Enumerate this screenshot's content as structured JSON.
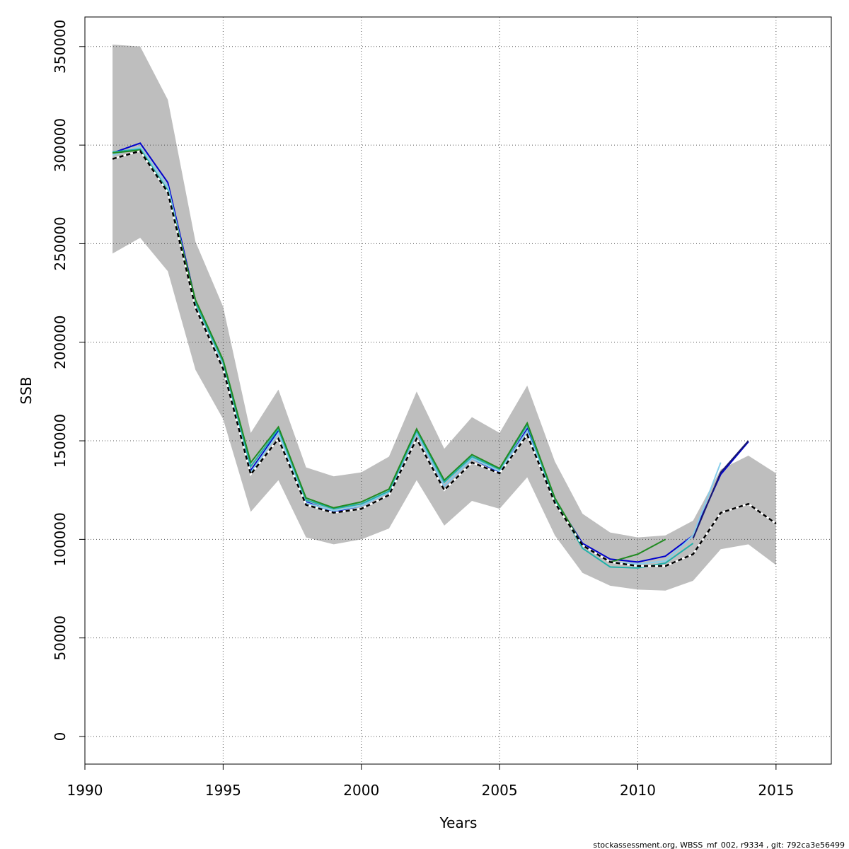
{
  "chart_data": {
    "type": "line",
    "xlabel": "Years",
    "ylabel": "SSB",
    "xlim": [
      1990,
      2017
    ],
    "ylim": [
      -14000,
      365000
    ],
    "x_ticks": [
      1990,
      1995,
      2000,
      2005,
      2010,
      2015
    ],
    "y_ticks": [
      0,
      50000,
      100000,
      150000,
      200000,
      250000,
      300000,
      350000
    ],
    "grid": true,
    "footer": "stockassessment.org, WBSS_mf_002, r9334 , git: 792ca3e56499",
    "confidence_band": {
      "x": [
        1991,
        1992,
        1993,
        1994,
        1995,
        1996,
        1997,
        1998,
        1999,
        2000,
        2001,
        2002,
        2003,
        2004,
        2005,
        2006,
        2007,
        2008,
        2009,
        2010,
        2011,
        2012,
        2013,
        2014,
        2015
      ],
      "lower": [
        245000,
        253000,
        236000,
        186000,
        161000,
        114000,
        130000,
        101000,
        97500,
        100000,
        105500,
        130000,
        107000,
        119500,
        115500,
        131500,
        102000,
        83000,
        76500,
        74500,
        74000,
        79000,
        95000,
        97500,
        87000
      ],
      "upper": [
        351000,
        350000,
        323000,
        251000,
        218000,
        154000,
        176000,
        136500,
        132000,
        134000,
        142000,
        175000,
        146000,
        162000,
        154000,
        178000,
        139500,
        113000,
        103500,
        101000,
        102000,
        109500,
        135500,
        142500,
        133500
      ],
      "color": "#bebebe"
    },
    "series": [
      {
        "color": "#0000cd",
        "x": [
          1991,
          1992,
          1993,
          1994,
          1995,
          1996,
          1997,
          1998,
          1999,
          2000,
          2001,
          2002,
          2003,
          2004,
          2005,
          2006,
          2007,
          2008,
          2009,
          2010,
          2011,
          2012,
          2013,
          2014
        ],
        "values": [
          296000,
          301000,
          281000,
          221000,
          190000,
          135000,
          155000,
          119000,
          114000,
          117000,
          124000,
          154000,
          127000,
          141000,
          134000,
          156000,
          120000,
          98000,
          90000,
          88500,
          91500,
          102000,
          133000,
          149500
        ]
      },
      {
        "color": "#87ceeb",
        "x": [
          1991,
          1992,
          1993,
          1994,
          1995,
          1996,
          1997,
          1998,
          1999,
          2000,
          2001,
          2002,
          2003,
          2004,
          2005,
          2006,
          2007,
          2008,
          2009,
          2010,
          2011,
          2012,
          2013
        ],
        "values": [
          295000,
          299000,
          279000,
          220000,
          189000,
          134000,
          154000,
          118500,
          114500,
          117000,
          124000,
          154000,
          127000,
          141000,
          134500,
          155000,
          120000,
          97000,
          88500,
          87500,
          89000,
          102000,
          139000
        ]
      },
      {
        "color": "#20b2aa",
        "x": [
          1991,
          1992,
          1993,
          1994,
          1995,
          1996,
          1997,
          1998,
          1999,
          2000,
          2001,
          2002,
          2003,
          2004,
          2005,
          2006,
          2007,
          2008,
          2009,
          2010,
          2011,
          2012
        ],
        "values": [
          296500,
          298000,
          277000,
          220000,
          190000,
          137000,
          156000,
          120000,
          115500,
          118000,
          124500,
          155000,
          129000,
          142000,
          135500,
          158000,
          120000,
          95500,
          86000,
          85500,
          88000,
          98000
        ]
      },
      {
        "color": "#228b22",
        "x": [
          1991,
          1992,
          1993,
          1994,
          1995,
          1996,
          1997,
          1998,
          1999,
          2000,
          2001,
          2002,
          2003,
          2004,
          2005,
          2006,
          2007,
          2008,
          2009,
          2010,
          2011
        ],
        "values": [
          296000,
          297500,
          276000,
          221500,
          191000,
          139000,
          157000,
          121000,
          116000,
          119000,
          125500,
          156000,
          130000,
          143000,
          136000,
          159000,
          121000,
          97000,
          88500,
          92500,
          100000
        ]
      },
      {
        "color": "#191970",
        "x": [
          2012,
          2013,
          2014
        ],
        "values": [
          100500,
          134000,
          150000
        ]
      },
      {
        "color": "#000000",
        "dashed": true,
        "x": [
          1991,
          1992,
          1993,
          1994,
          1995,
          1996,
          1997,
          1998,
          1999,
          2000,
          2001,
          2002,
          2003,
          2004,
          2005,
          2006,
          2007,
          2008,
          2009,
          2010,
          2011,
          2012,
          2013,
          2014,
          2015
        ],
        "values": [
          293000,
          297000,
          276000,
          217500,
          186500,
          133000,
          151000,
          117500,
          113500,
          115500,
          122500,
          151000,
          125000,
          139000,
          133500,
          153000,
          118500,
          97000,
          88500,
          86500,
          86500,
          92500,
          113500,
          118000,
          108000
        ]
      }
    ]
  }
}
